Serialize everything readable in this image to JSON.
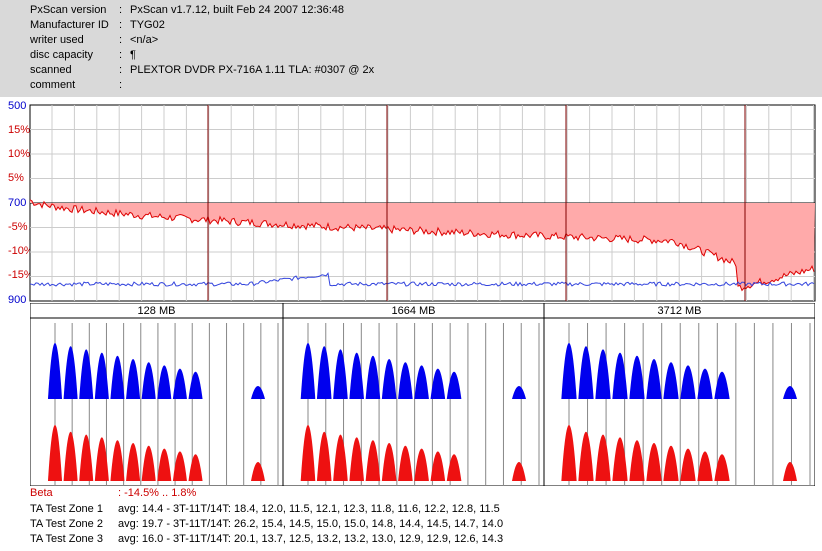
{
  "header": {
    "rows": [
      {
        "key": "PxScan version",
        "sep": ":",
        "value": "PxScan v1.7.12, built Feb 24 2007 12:36:48"
      },
      {
        "key": "Manufacturer ID",
        "sep": ":",
        "value": "TYG02"
      },
      {
        "key": "writer used",
        "sep": ":",
        "value": "<n/a>"
      },
      {
        "key": "disc capacity",
        "sep": ":",
        "value": "¶"
      },
      {
        "key": "scanned",
        "sep": ":",
        "value": "PLEXTOR DVDR PX-716A 1.11 TLA: #0307 @ 2x"
      },
      {
        "key": "comment",
        "sep": ":",
        "value": ""
      }
    ]
  },
  "top_chart": {
    "y_labels": [
      "500",
      "15%",
      "10%",
      "5%",
      "700",
      "-5%",
      "-10%",
      "-15%",
      "900"
    ],
    "y_label_colors": [
      "#0000cc",
      "#cc0000",
      "#cc0000",
      "#cc0000",
      "#0000cc",
      "#cc0000",
      "#cc0000",
      "#cc0000",
      "#0000cc"
    ],
    "colors": {
      "beta": "#dd0000",
      "beta_fill": "#ffaaaa",
      "jitter": "#3344dd",
      "marker": "#800000",
      "grid": "#cccccc"
    }
  },
  "zones": [
    {
      "label": "128 MB"
    },
    {
      "label": "1664 MB"
    },
    {
      "label": "3712 MB"
    }
  ],
  "footer": {
    "beta": {
      "key": "Beta",
      "value": ": -14.5% .. 1.8%",
      "color": "#cc0000"
    },
    "ta_zones": [
      {
        "key": "TA Test Zone 1",
        "value": "avg: 14.4 - 3T-11T/14T: 18.4, 12.0, 11.5, 12.1, 12.3, 11.8, 11.6, 12.2, 12.8, 11.5"
      },
      {
        "key": "TA Test Zone 2",
        "value": "avg: 19.7 - 3T-11T/14T: 26.2, 15.4, 14.5, 15.0, 15.0, 14.8, 14.4, 14.5, 14.7, 14.0"
      },
      {
        "key": "TA Test Zone 3",
        "value": "avg: 16.0 - 3T-11T/14T: 20.1, 13.7, 12.5, 13.2, 13.2, 13.0, 12.9, 12.9, 12.6, 14.3"
      }
    ]
  }
}
